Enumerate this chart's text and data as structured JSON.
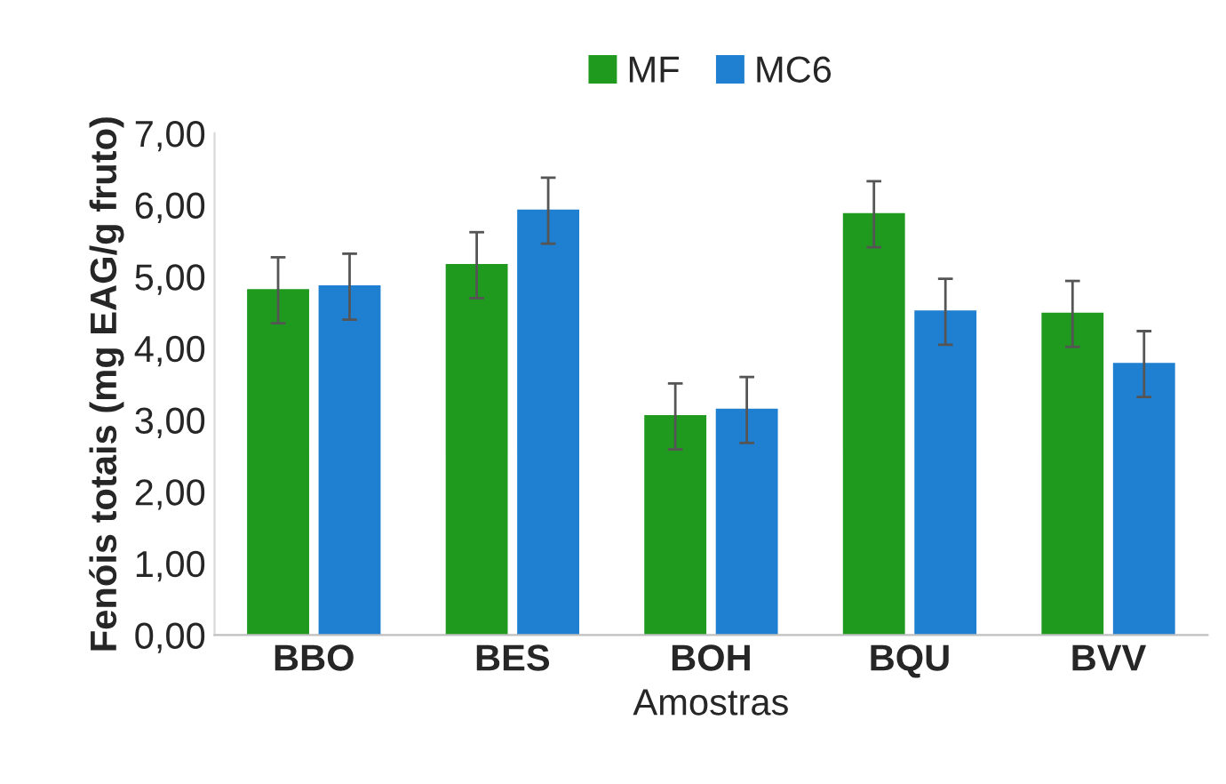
{
  "chart_data": {
    "type": "bar",
    "xlabel": "Amostras",
    "ylabel": "Fenóis totais (mg EAG/g fruto)",
    "categories": [
      "BBO",
      "BES",
      "BOH",
      "BQU",
      "BVV"
    ],
    "series": [
      {
        "name": "MF",
        "color": "#1f9a1f",
        "values": [
          4.81,
          5.16,
          3.05,
          5.87,
          4.48
        ],
        "errors": [
          0.46,
          0.46,
          0.46,
          0.46,
          0.46
        ]
      },
      {
        "name": "MC6",
        "color": "#1f7fd0",
        "values": [
          4.86,
          5.92,
          3.14,
          4.51,
          3.78
        ],
        "errors": [
          0.46,
          0.46,
          0.46,
          0.46,
          0.46
        ]
      }
    ],
    "ylim": [
      0,
      7
    ],
    "yticks": [
      {
        "value": 0,
        "label": "0,00"
      },
      {
        "value": 1,
        "label": "1,00"
      },
      {
        "value": 2,
        "label": "2,00"
      },
      {
        "value": 3,
        "label": "3,00"
      },
      {
        "value": 4,
        "label": "4,00"
      },
      {
        "value": 5,
        "label": "5,00"
      },
      {
        "value": 6,
        "label": "6,00"
      },
      {
        "value": 7,
        "label": "7,00"
      }
    ],
    "grid": false,
    "legend": "top"
  }
}
